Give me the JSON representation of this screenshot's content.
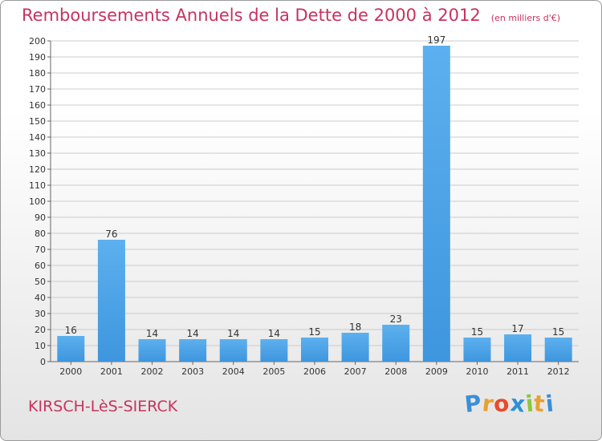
{
  "header": {
    "title": "Remboursements Annuels de la Dette de 2000 à 2012",
    "unit": "(en milliers d'€)"
  },
  "footer": {
    "place": "KIRSCH-LèS-SIERCK",
    "logo_letters": [
      "P",
      "r",
      "o",
      "x",
      "i",
      "t",
      "i"
    ],
    "logo_colors": [
      "#3a8fd6",
      "#e8a030",
      "#e84b2a",
      "#2c8fd8",
      "#8cc63e",
      "#e8a030",
      "#3a8fd6"
    ]
  },
  "colors": {
    "bar": "#3e96de",
    "bar_light": "#5db0ee",
    "grid": "#cccccc",
    "text": "#333333"
  },
  "chart_data": {
    "type": "bar",
    "categories": [
      "2000",
      "2001",
      "2002",
      "2003",
      "2004",
      "2005",
      "2006",
      "2007",
      "2008",
      "2009",
      "2010",
      "2011",
      "2012"
    ],
    "values": [
      16,
      76,
      14,
      14,
      14,
      14,
      15,
      18,
      23,
      197,
      15,
      17,
      15
    ],
    "ylim": [
      0,
      200
    ],
    "yticks": [
      0,
      10,
      20,
      30,
      40,
      50,
      60,
      70,
      80,
      90,
      100,
      110,
      120,
      130,
      140,
      150,
      160,
      170,
      180,
      190,
      200
    ],
    "grid": true
  }
}
